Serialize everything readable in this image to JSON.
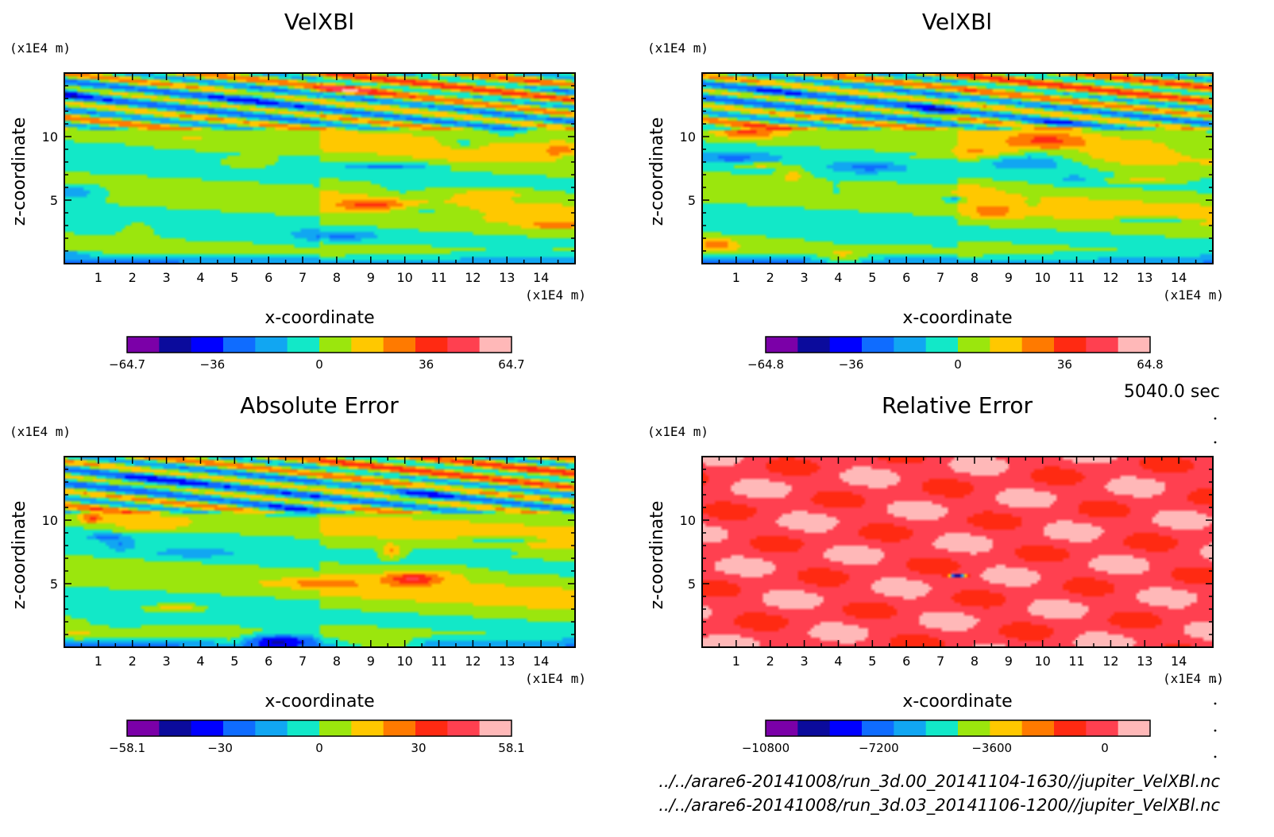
{
  "time_label": "5040.0 sec",
  "files": [
    "../../arare6-20141008/run_3d.00_20141104-1630//jupiter_VelXBl.nc",
    "../../arare6-20141008/run_3d.03_20141106-1200//jupiter_VelXBl.nc"
  ],
  "palette": [
    "#7b00a8",
    "#0b0b9c",
    "#0000ff",
    "#0f6cff",
    "#11a6f2",
    "#12e8c8",
    "#9be60d",
    "#ffc800",
    "#ff7a00",
    "#ff2a12",
    "#ff4050",
    "#ffb8b8"
  ],
  "chart_data": [
    {
      "type": "heatmap",
      "title": "VelXBl",
      "xlabel": "x-coordinate",
      "ylabel": "z-coordinate",
      "x_unit": "(x1E4 m)",
      "y_unit": "(x1E4 m)",
      "xlim": [
        0,
        15
      ],
      "ylim": [
        0,
        15
      ],
      "xticks": [
        "1",
        "2",
        "3",
        "4",
        "5",
        "6",
        "7",
        "8",
        "9",
        "10",
        "11",
        "12",
        "13",
        "14"
      ],
      "yticks": [
        "5",
        "10"
      ],
      "colorbar": {
        "min": -64.7,
        "max": 64.7,
        "labels": [
          "-64.7",
          "-36",
          "0",
          "36",
          "64.7"
        ]
      },
      "seed": 1
    },
    {
      "type": "heatmap",
      "title": "VelXBl",
      "xlabel": "x-coordinate",
      "ylabel": "z-coordinate",
      "x_unit": "(x1E4 m)",
      "y_unit": "(x1E4 m)",
      "xlim": [
        0,
        15
      ],
      "ylim": [
        0,
        15
      ],
      "xticks": [
        "1",
        "2",
        "3",
        "4",
        "5",
        "6",
        "7",
        "8",
        "9",
        "10",
        "11",
        "12",
        "13",
        "14"
      ],
      "yticks": [
        "5",
        "10"
      ],
      "colorbar": {
        "min": -64.8,
        "max": 64.8,
        "labels": [
          "-64.8",
          "-36",
          "0",
          "36",
          "64.8"
        ]
      },
      "seed": 2
    },
    {
      "type": "heatmap",
      "title": "Absolute Error",
      "xlabel": "x-coordinate",
      "ylabel": "z-coordinate",
      "x_unit": "(x1E4 m)",
      "y_unit": "(x1E4 m)",
      "xlim": [
        0,
        15
      ],
      "ylim": [
        0,
        15
      ],
      "xticks": [
        "1",
        "2",
        "3",
        "4",
        "5",
        "6",
        "7",
        "8",
        "9",
        "10",
        "11",
        "12",
        "13",
        "14"
      ],
      "yticks": [
        "5",
        "10"
      ],
      "colorbar": {
        "min": -58.1,
        "max": 58.1,
        "labels": [
          "-58.1",
          "-30",
          "0",
          "30",
          "58.1"
        ]
      },
      "seed": 3
    },
    {
      "type": "heatmap",
      "title": "Relative Error",
      "xlabel": "x-coordinate",
      "ylabel": "z-coordinate",
      "x_unit": "(x1E4 m)",
      "y_unit": "(x1E4 m)",
      "xlim": [
        0,
        15
      ],
      "ylim": [
        0,
        15
      ],
      "xticks": [
        "1",
        "2",
        "3",
        "4",
        "5",
        "6",
        "7",
        "8",
        "9",
        "10",
        "11",
        "12",
        "13",
        "14"
      ],
      "yticks": [
        "5",
        "10"
      ],
      "colorbar": {
        "min": -10800,
        "max": 1440,
        "labels": [
          "-10800",
          "-7200",
          "-3600",
          "0"
        ]
      },
      "seed": 4
    }
  ]
}
